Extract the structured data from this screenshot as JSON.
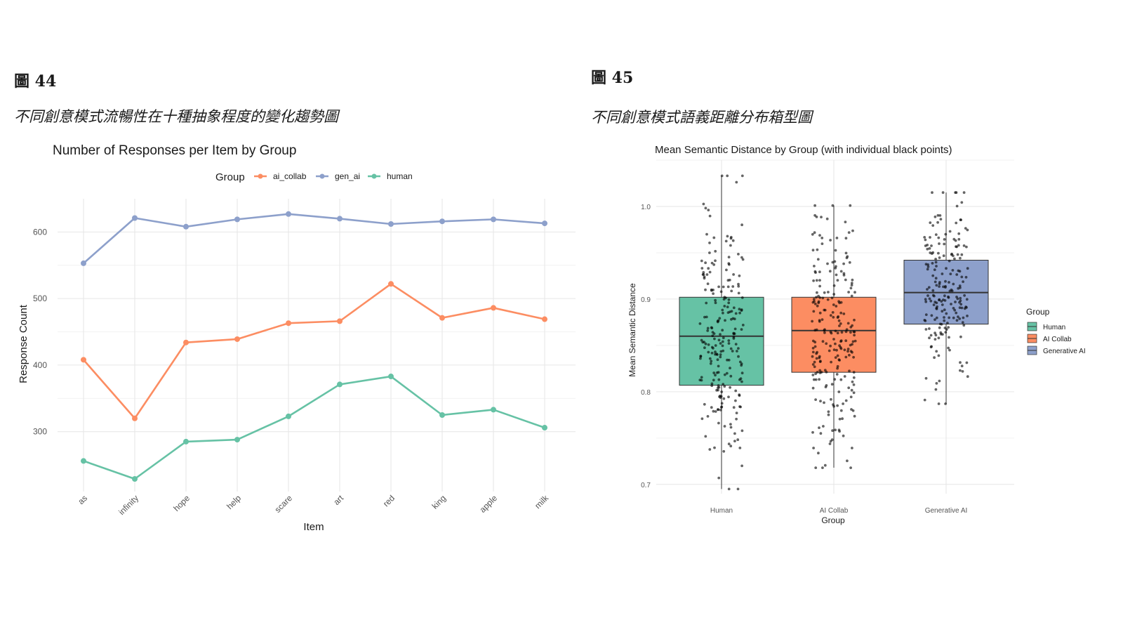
{
  "figures": [
    {
      "label": "圖 44",
      "caption": "不同創意模式流暢性在十種抽象程度的變化趨勢圖"
    },
    {
      "label": "圖 45",
      "caption": "不同創意模式語義距離分布箱型圖"
    }
  ],
  "chart_data": [
    {
      "type": "line",
      "title": "Number of Responses per Item by Group",
      "xlabel": "Item",
      "ylabel": "Response Count",
      "categories": [
        "as",
        "infinity",
        "hope",
        "help",
        "scare",
        "art",
        "red",
        "king",
        "apple",
        "milk"
      ],
      "legend_title": "Group",
      "legend_position": "top",
      "grid": true,
      "ylim": [
        210,
        650
      ],
      "yticks": [
        300,
        400,
        500,
        600
      ],
      "series": [
        {
          "name": "ai_collab",
          "color": "#fc8d62",
          "values": [
            408,
            320,
            434,
            439,
            463,
            466,
            522,
            471,
            486,
            469
          ]
        },
        {
          "name": "gen_ai",
          "color": "#8da0cb",
          "values": [
            553,
            621,
            608,
            619,
            627,
            620,
            612,
            616,
            619,
            613
          ]
        },
        {
          "name": "human",
          "color": "#66c2a5",
          "values": [
            256,
            229,
            285,
            288,
            323,
            371,
            383,
            325,
            333,
            306
          ]
        }
      ]
    },
    {
      "type": "box",
      "title": "Mean Semantic Distance by Group (with individual black points)",
      "xlabel": "Group",
      "ylabel": "Mean Semantic Distance",
      "categories": [
        "Human",
        "AI Collab",
        "Generative AI"
      ],
      "legend_title": "Group",
      "legend_position": "right",
      "grid": true,
      "ylim": [
        0.69,
        1.05
      ],
      "yticks": [
        0.7,
        0.8,
        0.9,
        1.0
      ],
      "ytick_labels": [
        "0.7",
        "0.8",
        "0.9",
        "1.0"
      ],
      "series": [
        {
          "name": "Human",
          "color": "#66c2a5",
          "min": 0.695,
          "q1": 0.807,
          "median": 0.86,
          "q3": 0.902,
          "max": 1.033,
          "n_points": 230
        },
        {
          "name": "AI Collab",
          "color": "#fc8d62",
          "min": 0.718,
          "q1": 0.821,
          "median": 0.866,
          "q3": 0.902,
          "max": 1.001,
          "n_points": 230
        },
        {
          "name": "Generative AI",
          "color": "#8da0cb",
          "min": 0.787,
          "q1": 0.873,
          "median": 0.907,
          "q3": 0.942,
          "max": 1.015,
          "n_points": 200
        }
      ]
    }
  ]
}
